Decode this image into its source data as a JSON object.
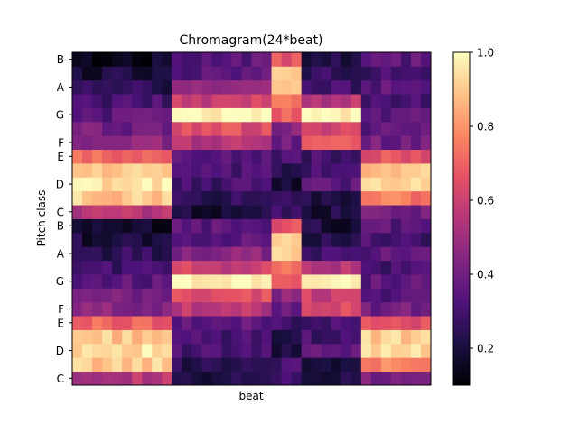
{
  "chart_data": {
    "type": "heatmap",
    "title": "Chromagram(24*beat)",
    "xlabel": "beat",
    "ylabel": "Pitch class",
    "colormap": "magma",
    "clim": [
      0.1,
      1.0
    ],
    "colorbar_ticks": [
      "0.2",
      "0.4",
      "0.6",
      "0.8",
      "1.0"
    ],
    "colorbar_tick_values": [
      0.2,
      0.4,
      0.6,
      0.8,
      1.0
    ],
    "ytick_labels_bottom_to_top": [
      "C",
      "D",
      "E",
      "F",
      "G",
      "A",
      "B",
      "C",
      "D",
      "E",
      "F",
      "G",
      "A",
      "B"
    ],
    "ytick_rows_bottom_to_top": [
      0,
      2,
      4,
      5,
      7,
      9,
      11,
      12,
      14,
      16,
      17,
      19,
      21,
      23
    ],
    "n_rows": 24,
    "n_cols": 36,
    "row_pitch_classes_bottom_to_top": [
      "C",
      "C#",
      "D",
      "D#",
      "E",
      "F",
      "F#",
      "G",
      "G#",
      "A",
      "A#",
      "B",
      "C",
      "C#",
      "D",
      "D#",
      "E",
      "F",
      "F#",
      "G",
      "G#",
      "A",
      "A#",
      "B"
    ],
    "segments": [
      {
        "cols": [
          0,
          9
        ],
        "profile": [
          0.55,
          0.9,
          0.95,
          0.9,
          0.7,
          0.45,
          0.4,
          0.35,
          0.3,
          0.25,
          0.2,
          0.15
        ]
      },
      {
        "cols": [
          10,
          19
        ],
        "profile": [
          0.2,
          0.25,
          0.3,
          0.3,
          0.35,
          0.55,
          0.65,
          1.0,
          0.6,
          0.45,
          0.35,
          0.35
        ]
      },
      {
        "cols": [
          20,
          22
        ],
        "profile": [
          0.3,
          0.3,
          0.2,
          0.25,
          0.3,
          0.4,
          0.45,
          0.7,
          0.75,
          0.9,
          0.95,
          0.65
        ]
      },
      {
        "cols": [
          23,
          28
        ],
        "profile": [
          0.2,
          0.2,
          0.35,
          0.3,
          0.3,
          0.65,
          0.6,
          1.0,
          0.55,
          0.3,
          0.25,
          0.2
        ]
      },
      {
        "cols": [
          29,
          35
        ],
        "profile": [
          0.4,
          0.75,
          0.95,
          0.9,
          0.65,
          0.4,
          0.35,
          0.35,
          0.3,
          0.35,
          0.3,
          0.35
        ]
      }
    ],
    "grid": false,
    "legend": "colorbar-right"
  }
}
